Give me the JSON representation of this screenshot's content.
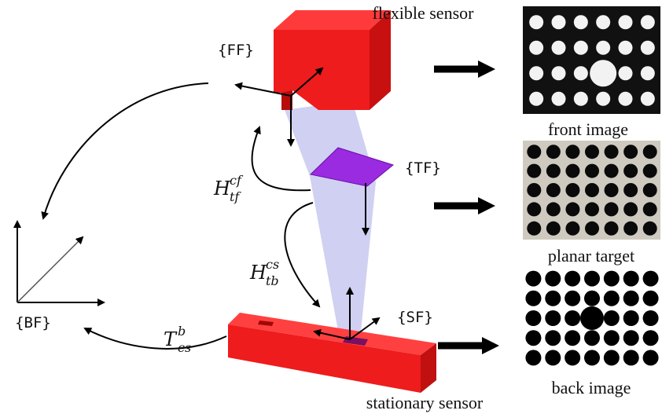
{
  "labels": {
    "flexible_sensor": "flexible sensor",
    "front_image": "front image",
    "planar_target": "planar target",
    "back_image": "back image",
    "stationary_sensor": "stationary sensor"
  },
  "frames": {
    "ff": "{FF}",
    "tf": "{TF}",
    "sf": "{SF}",
    "bf": "{BF}"
  },
  "transforms": [
    {
      "base": "H",
      "sup": "cf",
      "sub": "tf"
    },
    {
      "base": "H",
      "sup": "cs",
      "sub": "tb"
    },
    {
      "base": "T",
      "sup": "b",
      "sub": "cs"
    }
  ]
}
